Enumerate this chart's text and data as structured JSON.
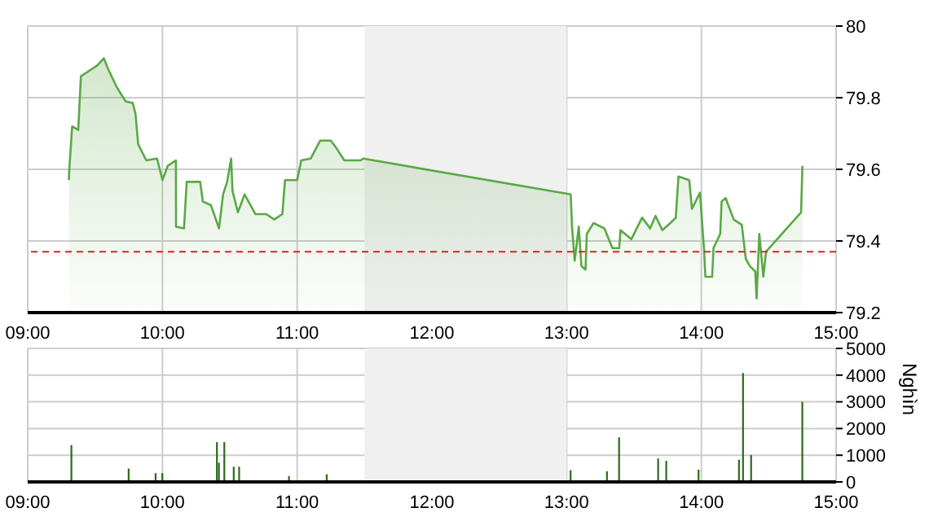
{
  "chart_data": [
    {
      "type": "area",
      "color": "#5aa845",
      "xlim": [
        9,
        15
      ],
      "xticks": [
        {
          "value": 9,
          "label": "09:00"
        },
        {
          "value": 10,
          "label": "10:00"
        },
        {
          "value": 11,
          "label": "11:00"
        },
        {
          "value": 12,
          "label": "12:00"
        },
        {
          "value": 13,
          "label": "13:00"
        },
        {
          "value": 14,
          "label": "14:00"
        },
        {
          "value": 15,
          "label": "15:00"
        }
      ],
      "ylim": [
        79.2,
        80
      ],
      "yticks": [
        79.2,
        79.4,
        79.6,
        79.8,
        80
      ],
      "grid": true,
      "x": [
        9.306,
        9.307,
        9.33,
        9.375,
        9.395,
        9.456,
        9.516,
        9.565,
        9.597,
        9.66,
        9.726,
        9.78,
        9.8,
        9.82,
        9.88,
        9.96,
        10.0,
        10.04,
        10.1,
        10.101,
        10.16,
        10.18,
        10.28,
        10.3,
        10.36,
        10.42,
        10.45,
        10.48,
        10.51,
        10.52,
        10.56,
        10.61,
        10.69,
        10.77,
        10.83,
        10.89,
        10.91,
        11.0,
        11.03,
        11.1,
        11.17,
        11.25,
        11.29,
        11.35,
        11.47,
        11.49,
        13.03,
        13.04,
        13.06,
        13.09,
        13.11,
        13.14,
        13.15,
        13.2,
        13.28,
        13.34,
        13.39,
        13.4,
        13.48,
        13.56,
        13.62,
        13.66,
        13.71,
        13.77,
        13.81,
        13.83,
        13.91,
        13.93,
        13.99,
        14.02,
        14.03,
        14.08,
        14.09,
        14.14,
        14.15,
        14.18,
        14.24,
        14.3,
        14.33,
        14.36,
        14.4,
        14.41,
        14.43,
        14.46,
        14.48,
        14.74,
        14.75
      ],
      "values": [
        79.57,
        79.59,
        79.72,
        79.71,
        79.86,
        79.875,
        79.89,
        79.91,
        79.88,
        79.83,
        79.79,
        79.785,
        79.755,
        79.67,
        79.625,
        79.63,
        79.57,
        79.61,
        79.625,
        79.44,
        79.435,
        79.565,
        79.565,
        79.51,
        79.5,
        79.435,
        79.53,
        79.565,
        79.63,
        79.54,
        79.48,
        79.53,
        79.475,
        79.475,
        79.46,
        79.475,
        79.57,
        79.57,
        79.625,
        79.63,
        79.68,
        79.68,
        79.66,
        79.625,
        79.625,
        79.63,
        79.53,
        79.44,
        79.345,
        79.44,
        79.33,
        79.32,
        79.42,
        79.45,
        79.435,
        79.38,
        79.38,
        79.43,
        79.405,
        79.465,
        79.435,
        79.47,
        79.43,
        79.45,
        79.465,
        79.58,
        79.57,
        79.49,
        79.535,
        79.375,
        79.3,
        79.3,
        79.38,
        79.42,
        79.51,
        79.52,
        79.46,
        79.445,
        79.35,
        79.33,
        79.315,
        79.24,
        79.42,
        79.3,
        79.37,
        79.48,
        79.61
      ],
      "ref_lines": [
        {
          "axis": "y",
          "value": 79.37,
          "color": "#dd2222",
          "line_style": "dashed"
        }
      ],
      "bands": [
        {
          "axis": "x",
          "from": 11.5,
          "to": 13,
          "color": "#f0f0f0"
        }
      ]
    },
    {
      "type": "bar",
      "color": "#2e6b1f",
      "xlim": [
        9,
        15
      ],
      "xticks": [
        {
          "value": 9,
          "label": "09:00"
        },
        {
          "value": 10,
          "label": "10:00"
        },
        {
          "value": 11,
          "label": "11:00"
        },
        {
          "value": 12,
          "label": "12:00"
        },
        {
          "value": 13,
          "label": "13:00"
        },
        {
          "value": 14,
          "label": "14:00"
        },
        {
          "value": 15,
          "label": "15:00"
        }
      ],
      "ylim": [
        0,
        5000
      ],
      "yticks": [
        0,
        1000,
        2000,
        3000,
        4000,
        5000
      ],
      "grid": true,
      "ylabel": "Nghìn",
      "x": [
        9.325,
        9.75,
        9.95,
        10.0,
        10.405,
        10.42,
        10.46,
        10.53,
        10.57,
        10.94,
        11.22,
        13.03,
        13.3,
        13.39,
        13.68,
        13.74,
        13.98,
        14.28,
        14.31,
        14.37,
        14.75
      ],
      "values": [
        1380,
        500,
        330,
        330,
        1490,
        720,
        1490,
        570,
        570,
        220,
        290,
        440,
        400,
        1670,
        880,
        790,
        460,
        830,
        4080,
        1010,
        3000
      ],
      "bands": [
        {
          "axis": "x",
          "from": 11.5,
          "to": 13,
          "color": "#f0f0f0"
        }
      ]
    }
  ]
}
